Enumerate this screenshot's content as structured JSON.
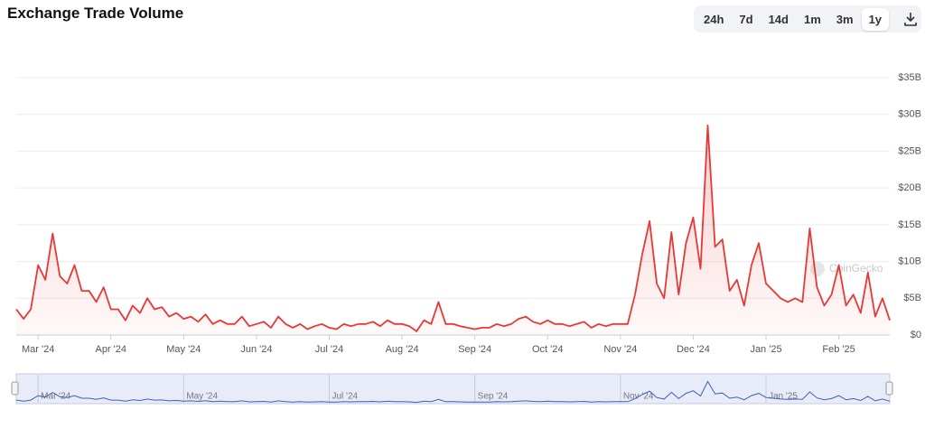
{
  "range_buttons": [
    "24h",
    "7d",
    "14d",
    "1m",
    "3m",
    "1y"
  ],
  "chart_data": {
    "type": "line",
    "title": "Exchange Trade Volume",
    "watermark": "CoinGecko",
    "categories": [
      null,
      null,
      null,
      "Mar '24",
      null,
      null,
      null,
      null,
      null,
      null,
      null,
      null,
      null,
      "Apr '24",
      null,
      null,
      null,
      null,
      null,
      null,
      null,
      null,
      null,
      "May '24",
      null,
      null,
      null,
      null,
      null,
      null,
      null,
      null,
      null,
      "Jun '24",
      null,
      null,
      null,
      null,
      null,
      null,
      null,
      null,
      null,
      "Jul '24",
      null,
      null,
      null,
      null,
      null,
      null,
      null,
      null,
      null,
      "Aug '24",
      null,
      null,
      null,
      null,
      null,
      null,
      null,
      null,
      null,
      "Sep '24",
      null,
      null,
      null,
      null,
      null,
      null,
      null,
      null,
      null,
      "Oct '24",
      null,
      null,
      null,
      null,
      null,
      null,
      null,
      null,
      null,
      "Nov '24",
      null,
      null,
      null,
      null,
      null,
      null,
      null,
      null,
      null,
      "Dec '24",
      null,
      null,
      null,
      null,
      null,
      null,
      null,
      null,
      null,
      "Jan '25",
      null,
      null,
      null,
      null,
      null,
      null,
      null,
      null,
      null,
      "Feb '25",
      null,
      null,
      null,
      null,
      null,
      null,
      null
    ],
    "series": [
      {
        "name": "Volume",
        "color": "#e53935",
        "values": [
          3.5,
          2.2,
          3.5,
          9.5,
          7.5,
          13.8,
          8,
          7,
          9.5,
          6,
          6,
          4.5,
          6.5,
          3.5,
          3.5,
          2,
          4,
          3,
          5,
          3.5,
          3.8,
          2.5,
          3,
          2.2,
          2.5,
          1.8,
          2.8,
          1.5,
          2,
          1.5,
          1.5,
          2.5,
          1.2,
          1.5,
          1.8,
          1,
          2.5,
          1.5,
          1,
          1.5,
          0.8,
          1.2,
          1.5,
          1,
          0.8,
          1.5,
          1.2,
          1.5,
          1.5,
          1.8,
          1.2,
          2,
          1.5,
          1.5,
          1.2,
          0.5,
          2,
          1.5,
          4.5,
          1.5,
          1.5,
          1.2,
          1,
          0.8,
          1,
          1,
          1.5,
          1.2,
          1.5,
          2.2,
          2.5,
          1.8,
          1.5,
          2,
          1.5,
          1.5,
          1.2,
          1.5,
          1.8,
          1,
          1.5,
          1.2,
          1.5,
          1.5,
          1.5,
          5.5,
          11,
          15.5,
          7,
          5,
          14,
          5.5,
          12.5,
          16,
          9,
          28.5,
          12,
          13,
          6,
          7.5,
          4,
          9.5,
          12.5,
          7,
          6,
          5,
          4.5,
          5,
          4.5,
          14.5,
          6.5,
          4,
          5.5,
          9.5,
          4,
          5.5,
          3,
          8.5,
          2.5,
          5,
          2
        ]
      }
    ],
    "ylim": [
      0,
      35
    ],
    "yticks": [
      {
        "value": 0,
        "label": "$0"
      },
      {
        "value": 5,
        "label": "$5B"
      },
      {
        "value": 10,
        "label": "$10B"
      },
      {
        "value": 15,
        "label": "$15B"
      },
      {
        "value": 20,
        "label": "$20B"
      },
      {
        "value": 25,
        "label": "$25B"
      },
      {
        "value": 30,
        "label": "$30B"
      },
      {
        "value": 35,
        "label": "$35B"
      }
    ],
    "grid": true,
    "navigator_color": "#3b5fc0"
  }
}
